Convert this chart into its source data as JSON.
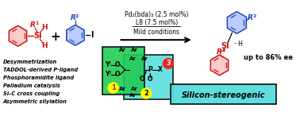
{
  "bg_color": "#ffffff",
  "conditions_line1": "Pd₂(bda)₃ (2.5 mol%)",
  "conditions_line2": "L8 (7.5 mol%)",
  "conditions_line3": "Mild conditions",
  "bullet_points": [
    "Desymmetrization",
    "TADDOL-derived P-ligand",
    "Phosphoramidite ligand",
    "Palladium catalysis",
    "Si–C cross coupling",
    "Asymmetric silylation"
  ],
  "ee_text": "up to 86% ee",
  "silicon_stereogenic": "Silicon-stereogenic",
  "box1_color": "#22cc55",
  "box2_color": "#55dddd",
  "box_border": "#000000",
  "circle_yellow": "#ffff00",
  "circle_red": "#ee2222",
  "red_color": "#cc1111",
  "blue_color": "#2244bb",
  "pink_fill": "#ffcccc",
  "blue_fill": "#bbccff",
  "text_color": "#000000"
}
